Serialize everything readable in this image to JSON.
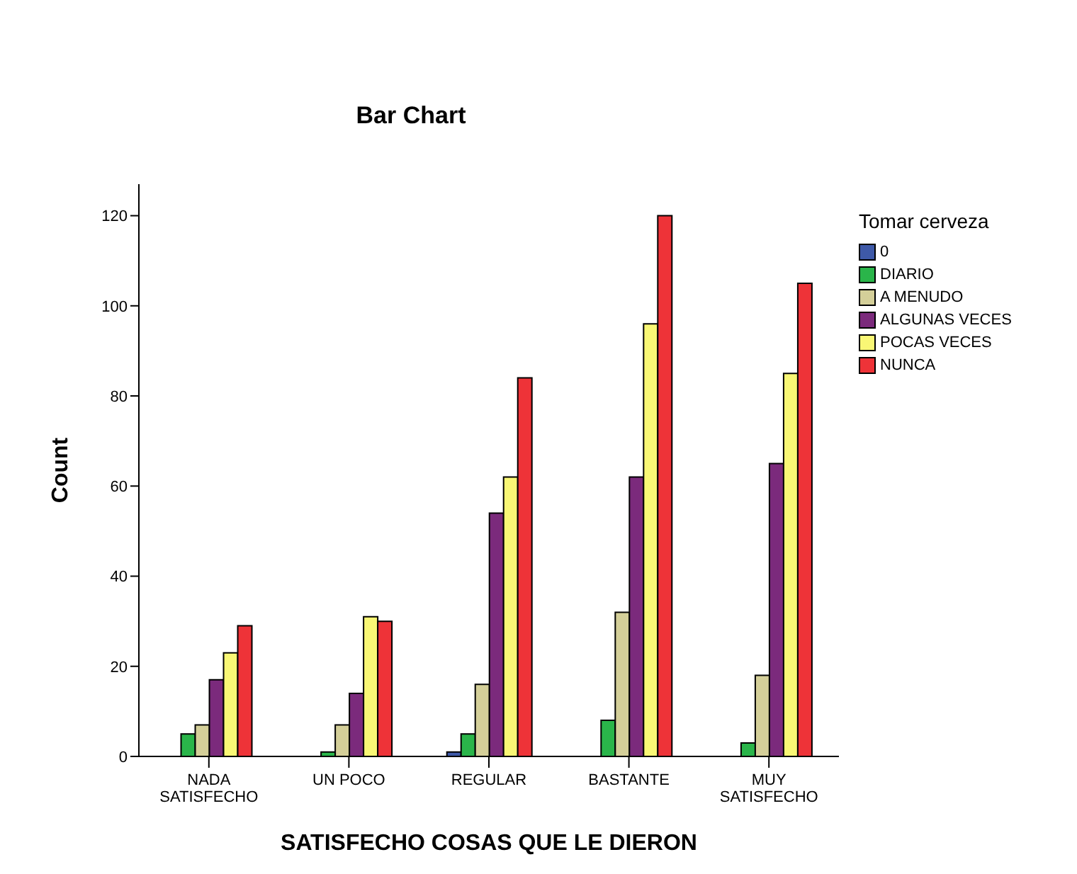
{
  "chart_data": {
    "type": "bar",
    "title": "Bar Chart",
    "xlabel": "SATISFECHO COSAS QUE LE DIERON",
    "ylabel": "Count",
    "legend_title": "Tomar cerveza",
    "categories": [
      "NADA\nSATISFECHO",
      "UN POCO",
      "REGULAR",
      "BASTANTE",
      "MUY\nSATISFECHO"
    ],
    "series": [
      {
        "name": "0",
        "color": "#3e59a8",
        "values": [
          0,
          0,
          1,
          0,
          0
        ]
      },
      {
        "name": "DIARIO",
        "color": "#2ab54a",
        "values": [
          5,
          1,
          5,
          8,
          3
        ]
      },
      {
        "name": "A MENUDO",
        "color": "#d4cf99",
        "values": [
          7,
          7,
          16,
          32,
          18
        ]
      },
      {
        "name": "ALGUNAS VECES",
        "color": "#7b2a7c",
        "values": [
          17,
          14,
          54,
          62,
          65
        ]
      },
      {
        "name": "POCAS VECES",
        "color": "#f9f775",
        "values": [
          23,
          31,
          62,
          96,
          85
        ]
      },
      {
        "name": "NUNCA",
        "color": "#ee3338",
        "values": [
          29,
          30,
          84,
          120,
          105
        ]
      }
    ],
    "ylim": [
      0,
      127
    ],
    "yticks": [
      0,
      20,
      40,
      60,
      80,
      100,
      120
    ],
    "grid": false,
    "legend": "top right"
  }
}
